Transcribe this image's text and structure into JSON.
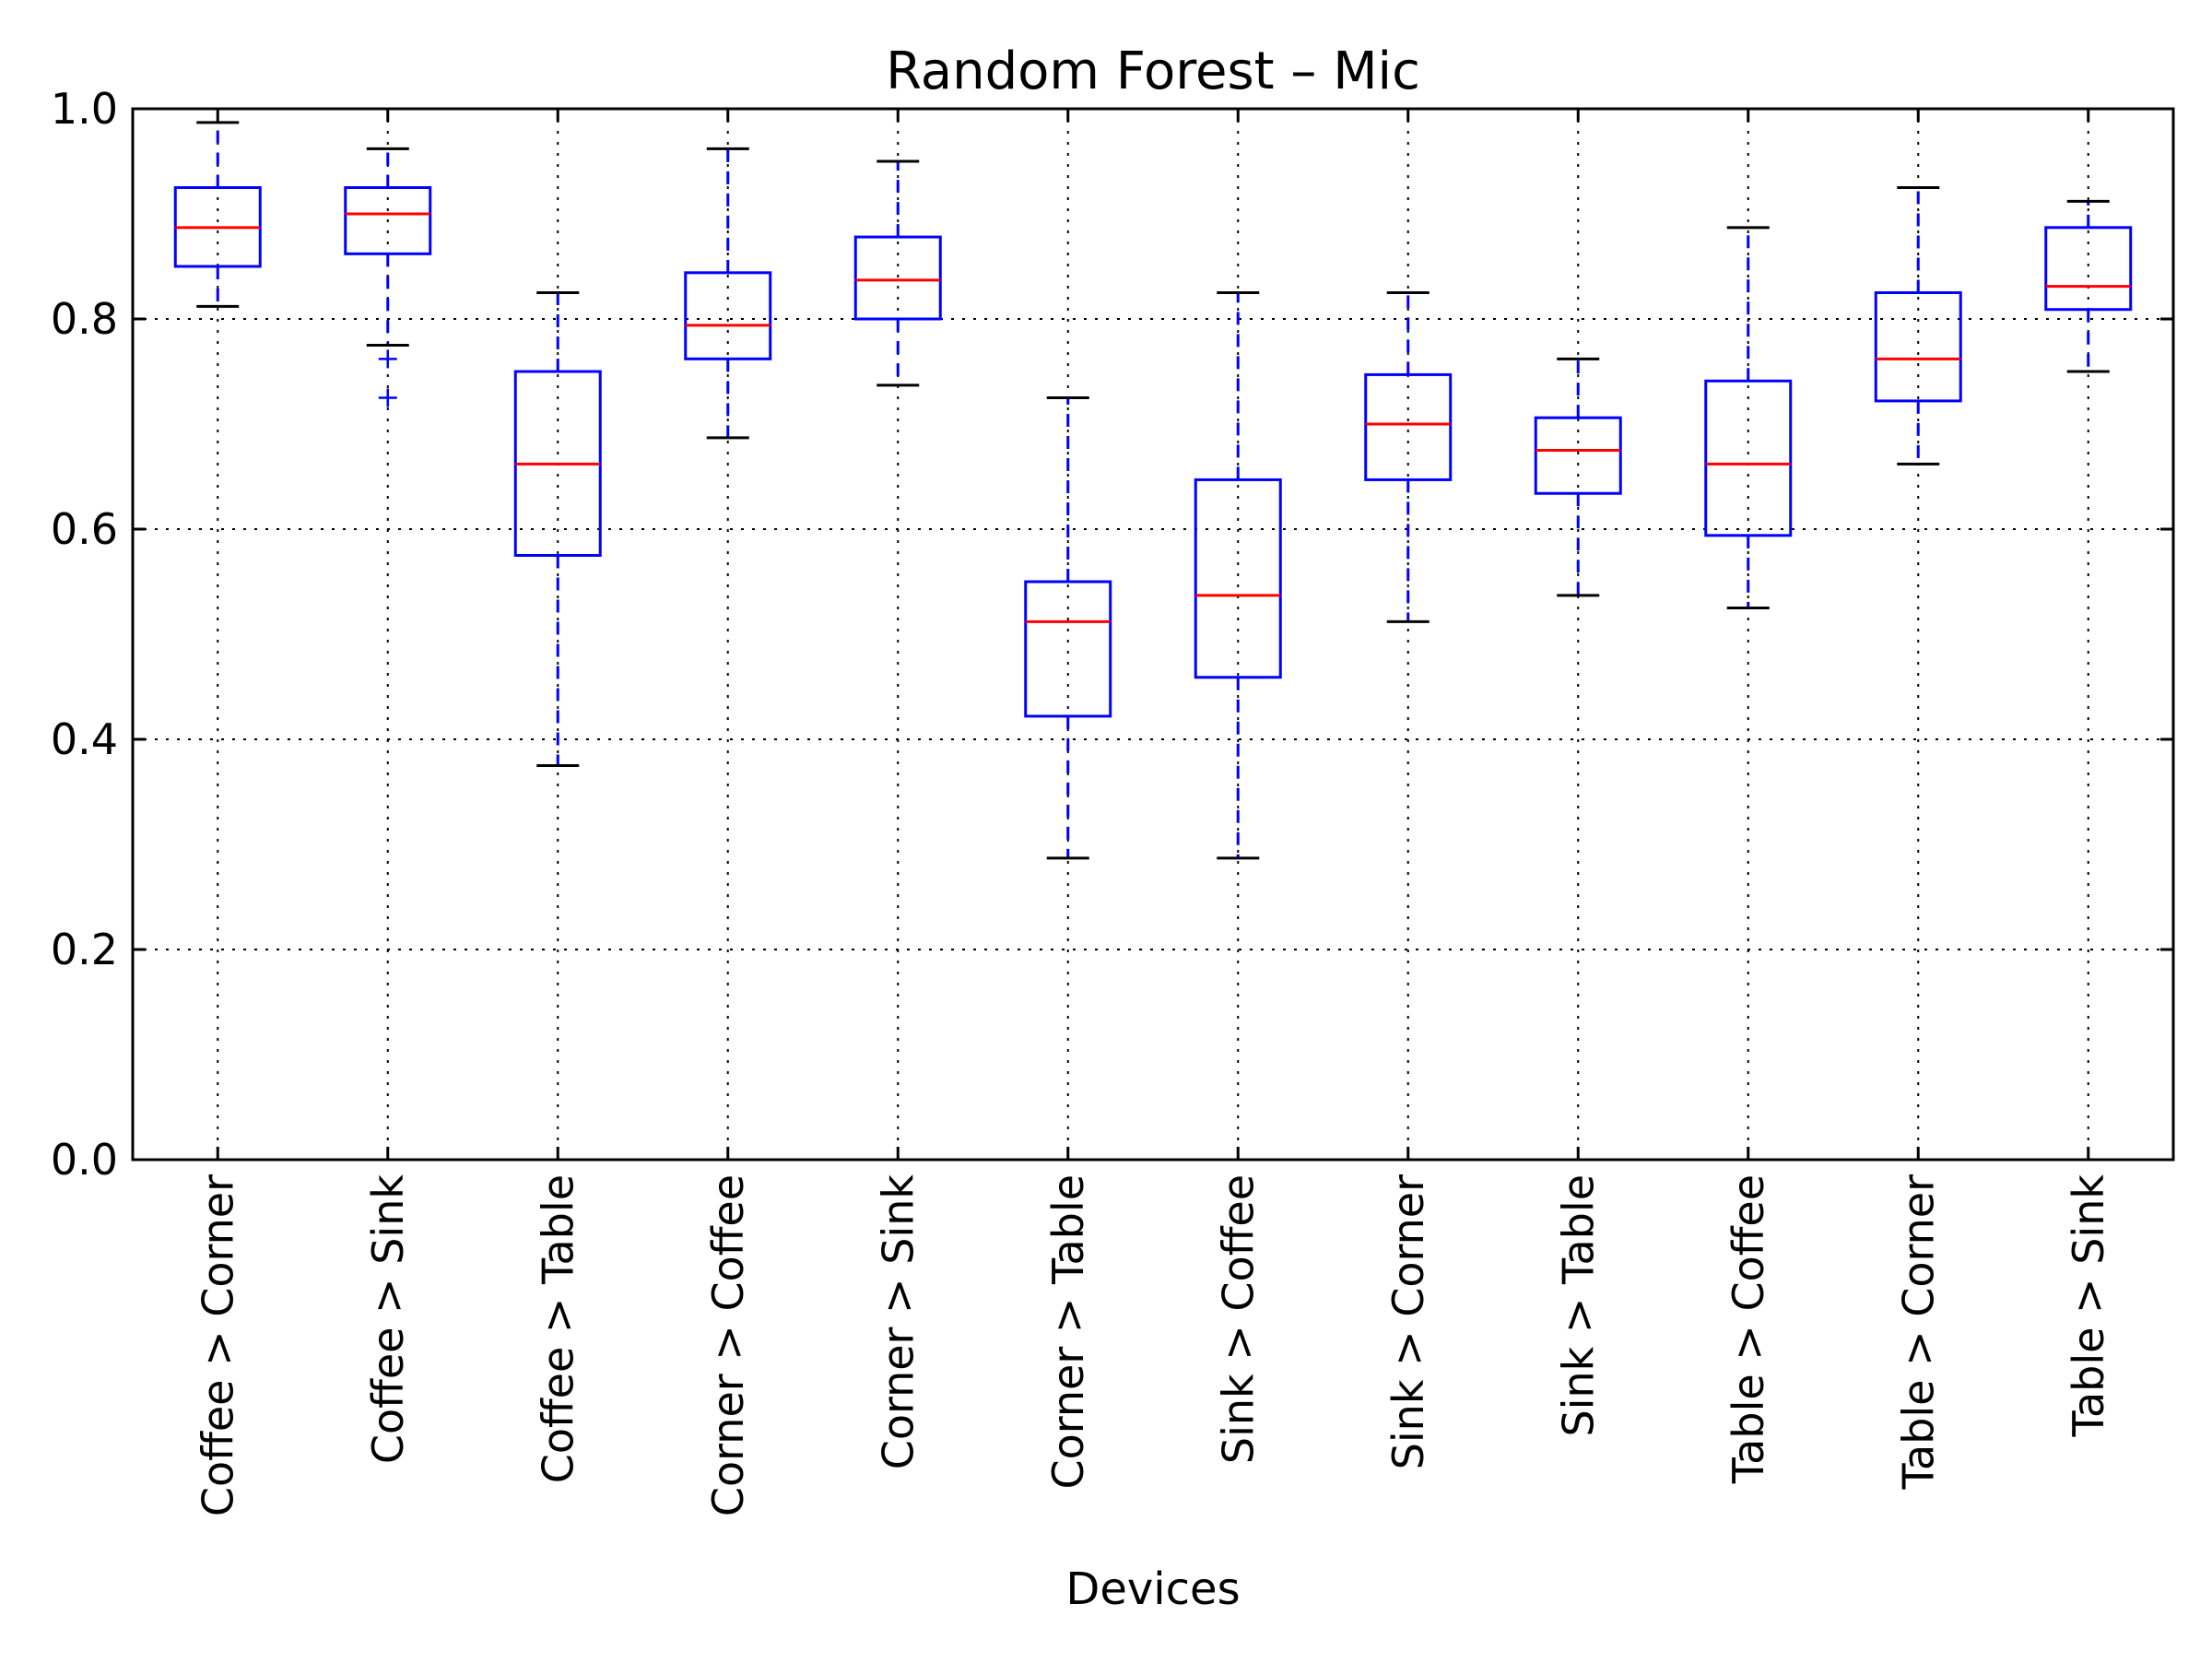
{
  "chart_data": {
    "type": "boxplot",
    "title": "Random Forest – Mic",
    "xlabel": "Devices",
    "ylabel": "",
    "ylim": [
      0.0,
      1.0
    ],
    "yticks": [
      0.0,
      0.2,
      0.4,
      0.6,
      0.8,
      1.0
    ],
    "ytick_labels": [
      "0.0",
      "0.2",
      "0.4",
      "0.6",
      "0.8",
      "1.0"
    ],
    "grid": true,
    "categories": [
      "Coffee > Corner",
      "Coffee > Sink",
      "Coffee > Table",
      "Corner > Coffee",
      "Corner > Sink",
      "Corner > Table",
      "Sink > Coffee",
      "Sink > Corner",
      "Sink > Table",
      "Table > Coffee",
      "Table > Corner",
      "Table > Sink"
    ],
    "boxes": [
      {
        "whisker_low": 0.812,
        "q1": 0.85,
        "median": 0.887,
        "q3": 0.925,
        "whisker_high": 0.987,
        "outliers": []
      },
      {
        "whisker_low": 0.775,
        "q1": 0.862,
        "median": 0.9,
        "q3": 0.925,
        "whisker_high": 0.962,
        "outliers": [
          0.762,
          0.725
        ]
      },
      {
        "whisker_low": 0.375,
        "q1": 0.575,
        "median": 0.662,
        "q3": 0.75,
        "whisker_high": 0.825,
        "outliers": []
      },
      {
        "whisker_low": 0.687,
        "q1": 0.762,
        "median": 0.794,
        "q3": 0.844,
        "whisker_high": 0.962,
        "outliers": []
      },
      {
        "whisker_low": 0.737,
        "q1": 0.8,
        "median": 0.837,
        "q3": 0.878,
        "whisker_high": 0.95,
        "outliers": []
      },
      {
        "whisker_low": 0.287,
        "q1": 0.422,
        "median": 0.512,
        "q3": 0.55,
        "whisker_high": 0.725,
        "outliers": []
      },
      {
        "whisker_low": 0.287,
        "q1": 0.459,
        "median": 0.537,
        "q3": 0.647,
        "whisker_high": 0.825,
        "outliers": []
      },
      {
        "whisker_low": 0.512,
        "q1": 0.647,
        "median": 0.7,
        "q3": 0.747,
        "whisker_high": 0.825,
        "outliers": []
      },
      {
        "whisker_low": 0.537,
        "q1": 0.634,
        "median": 0.675,
        "q3": 0.706,
        "whisker_high": 0.762,
        "outliers": []
      },
      {
        "whisker_low": 0.525,
        "q1": 0.594,
        "median": 0.662,
        "q3": 0.741,
        "whisker_high": 0.887,
        "outliers": []
      },
      {
        "whisker_low": 0.662,
        "q1": 0.722,
        "median": 0.762,
        "q3": 0.825,
        "whisker_high": 0.925,
        "outliers": []
      },
      {
        "whisker_low": 0.75,
        "q1": 0.809,
        "median": 0.831,
        "q3": 0.887,
        "whisker_high": 0.912,
        "outliers": []
      }
    ],
    "colors": {
      "box": "#0000ff",
      "median": "#ff0000",
      "whisker": "#0000ff",
      "cap": "#000000",
      "outlier": "#0000ff",
      "grid": "#000000",
      "axes": "#000000"
    }
  }
}
